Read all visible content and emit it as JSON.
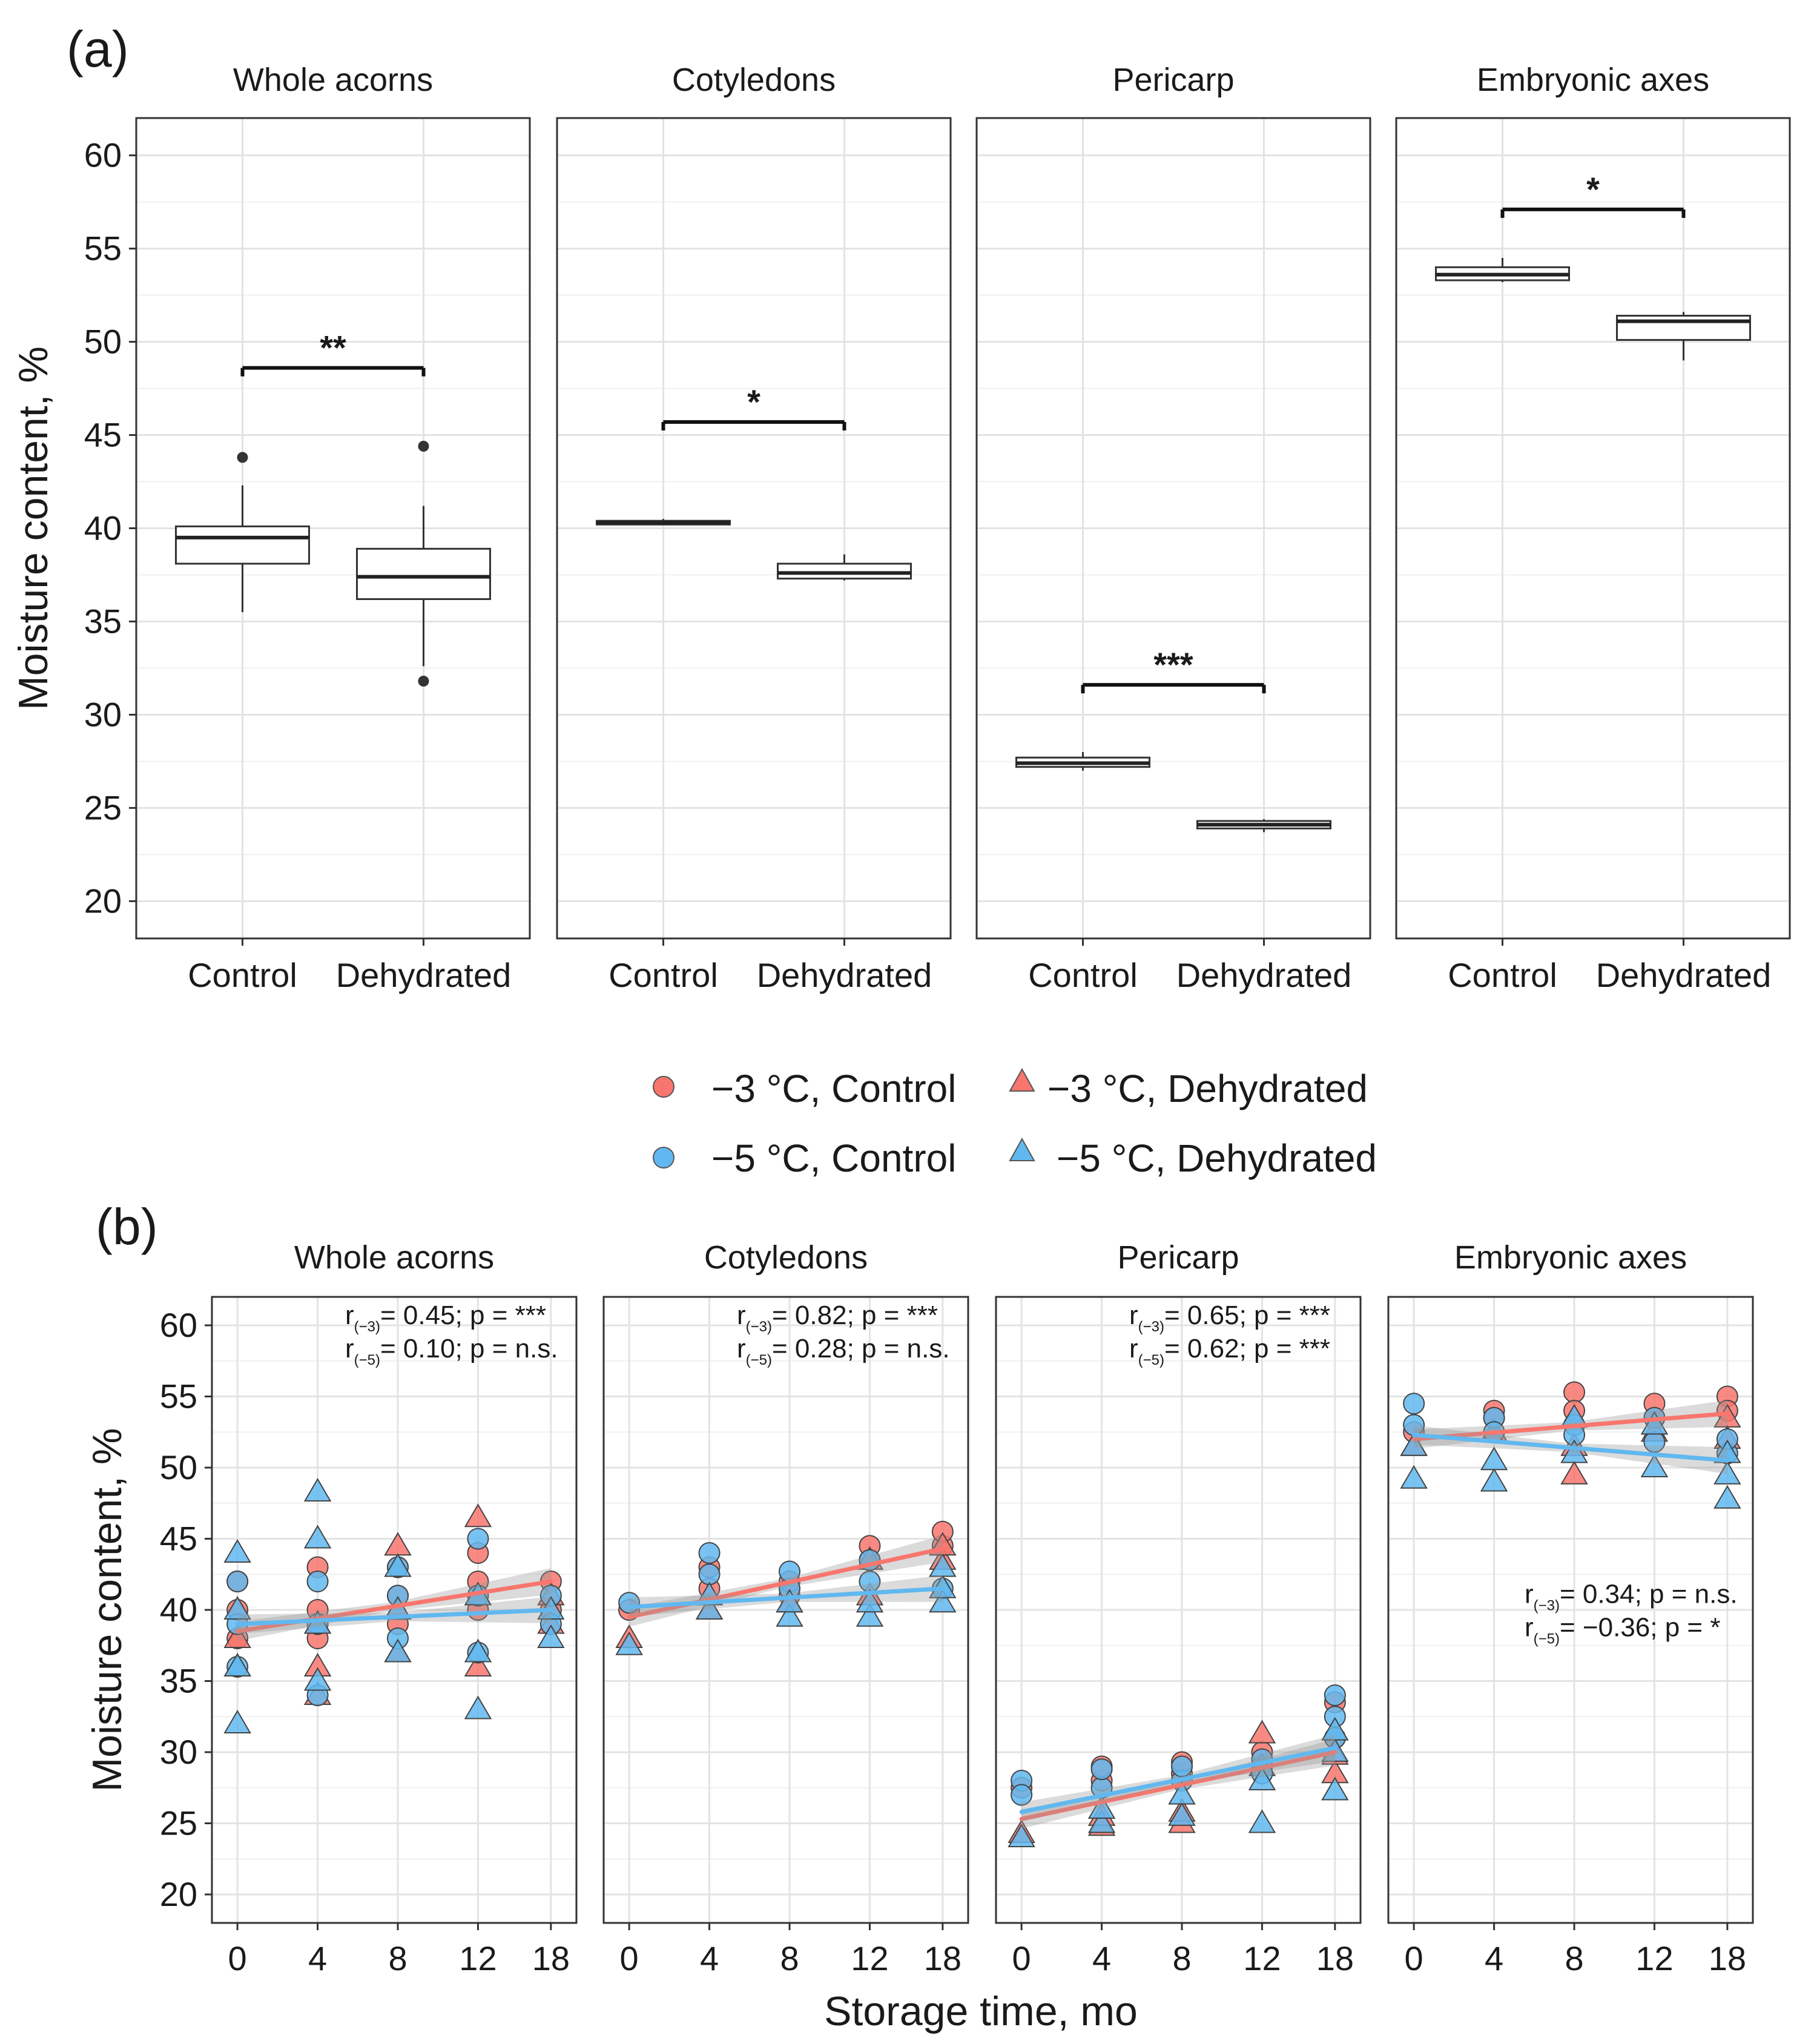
{
  "figure": {
    "panel_a_label": "(a)",
    "panel_b_label": "(b)",
    "ylabel": "Moisture content, %",
    "xlabel_b": "Storage time, mo",
    "facets": [
      "Whole acorns",
      "Cotyledons",
      "Pericarp",
      "Embryonic axes"
    ],
    "colors": {
      "minus3": "#f8766d",
      "minus5": "#61b8f0",
      "band": "#999999"
    }
  },
  "legend": {
    "items": [
      {
        "label": "−3 °C, Control",
        "shape": "circle",
        "color": "#f8766d"
      },
      {
        "label": "−3 °C, Dehydrated",
        "shape": "triangle",
        "color": "#f8766d"
      },
      {
        "label": "−5 °C, Control",
        "shape": "circle",
        "color": "#61b8f0"
      },
      {
        "label": "−5 °C, Dehydrated",
        "shape": "triangle",
        "color": "#61b8f0"
      }
    ]
  },
  "chart_data": [
    {
      "type": "box",
      "title": "(a)",
      "ylabel": "Moisture content, %",
      "ylim": [
        18,
        62
      ],
      "yticks": [
        20,
        25,
        30,
        35,
        40,
        45,
        50,
        55,
        60
      ],
      "categories": [
        "Control",
        "Dehydrated"
      ],
      "facets": [
        {
          "name": "Whole acorns",
          "significance": "**",
          "bracket_y": 48.6,
          "boxes": [
            {
              "q1": 38.1,
              "median": 39.5,
              "q3": 40.1,
              "whisker_low": 35.5,
              "whisker_high": 42.3,
              "outliers": [
                43.8
              ]
            },
            {
              "q1": 36.2,
              "median": 37.4,
              "q3": 38.9,
              "whisker_low": 32.6,
              "whisker_high": 41.2,
              "outliers": [
                44.4,
                31.8
              ]
            }
          ]
        },
        {
          "name": "Cotyledons",
          "significance": "*",
          "bracket_y": 45.7,
          "boxes": [
            {
              "q1": 40.2,
              "median": 40.3,
              "q3": 40.4,
              "whisker_low": 40.2,
              "whisker_high": 40.5,
              "outliers": []
            },
            {
              "q1": 37.3,
              "median": 37.6,
              "q3": 38.1,
              "whisker_low": 37.2,
              "whisker_high": 38.6,
              "outliers": []
            }
          ]
        },
        {
          "name": "Pericarp",
          "significance": "***",
          "bracket_y": 31.6,
          "boxes": [
            {
              "q1": 27.2,
              "median": 27.4,
              "q3": 27.7,
              "whisker_low": 27.0,
              "whisker_high": 28.0,
              "outliers": []
            },
            {
              "q1": 23.9,
              "median": 24.1,
              "q3": 24.3,
              "whisker_low": 23.7,
              "whisker_high": 24.4,
              "outliers": []
            }
          ]
        },
        {
          "name": "Embryonic axes",
          "significance": "*",
          "bracket_y": 57.1,
          "boxes": [
            {
              "q1": 53.3,
              "median": 53.6,
              "q3": 54.0,
              "whisker_low": 53.2,
              "whisker_high": 54.5,
              "outliers": []
            },
            {
              "q1": 50.1,
              "median": 51.1,
              "q3": 51.4,
              "whisker_low": 49.0,
              "whisker_high": 51.6,
              "outliers": []
            }
          ]
        }
      ]
    },
    {
      "type": "scatter",
      "title": "(b)",
      "xlabel": "Storage time, mo",
      "ylabel": "Moisture content, %",
      "ylim": [
        18,
        62
      ],
      "yticks": [
        20,
        25,
        30,
        35,
        40,
        45,
        50,
        55,
        60
      ],
      "x_categories": [
        "0",
        "4",
        "8",
        "12",
        "18"
      ],
      "facets": [
        {
          "name": "Whole acorns",
          "stats": [
            {
              "r_label": "r",
              "subscript": "(−3)",
              "text": "= 0.45; p = ***"
            },
            {
              "r_label": "r",
              "subscript": "(−5)",
              "text": "= 0.10; p = n.s."
            }
          ],
          "stats_position": "top-right",
          "trend": {
            "minus3": [
              38.5,
              42.0
            ],
            "minus5": [
              39.0,
              40.0
            ]
          },
          "points": {
            "minus3_control": [
              [
                0,
                38
              ],
              [
                0,
                40
              ],
              [
                0,
                42
              ],
              [
                4,
                38
              ],
              [
                4,
                40
              ],
              [
                4,
                43
              ],
              [
                8,
                39
              ],
              [
                8,
                41
              ],
              [
                8,
                43
              ],
              [
                12,
                40
              ],
              [
                12,
                42
              ],
              [
                12,
                44
              ],
              [
                18,
                40
              ],
              [
                18,
                42
              ]
            ],
            "minus3_dehydrated": [
              [
                0,
                36
              ],
              [
                0,
                38
              ],
              [
                4,
                34
              ],
              [
                4,
                36
              ],
              [
                4,
                39
              ],
              [
                8,
                37
              ],
              [
                8,
                40
              ],
              [
                8,
                44.5
              ],
              [
                12,
                36
              ],
              [
                12,
                41
              ],
              [
                12,
                46.5
              ],
              [
                18,
                39
              ],
              [
                18,
                41
              ]
            ],
            "minus5_control": [
              [
                0,
                36
              ],
              [
                0,
                39
              ],
              [
                0,
                42
              ],
              [
                4,
                34
              ],
              [
                4,
                39
              ],
              [
                4,
                42
              ],
              [
                8,
                38
              ],
              [
                8,
                41
              ],
              [
                8,
                43
              ],
              [
                12,
                37
              ],
              [
                12,
                41
              ],
              [
                12,
                45
              ],
              [
                18,
                39
              ],
              [
                18,
                41
              ]
            ],
            "minus5_dehydrated": [
              [
                0,
                32
              ],
              [
                0,
                36
              ],
              [
                0,
                40
              ],
              [
                0,
                44
              ],
              [
                4,
                35
              ],
              [
                4,
                39
              ],
              [
                4,
                45
              ],
              [
                4,
                48.3
              ],
              [
                8,
                37
              ],
              [
                8,
                40
              ],
              [
                8,
                43
              ],
              [
                12,
                33
              ],
              [
                12,
                37
              ],
              [
                12,
                41
              ],
              [
                18,
                38
              ],
              [
                18,
                40
              ]
            ]
          }
        },
        {
          "name": "Cotyledons",
          "stats": [
            {
              "r_label": "r",
              "subscript": "(−3)",
              "text": "= 0.82; p = ***"
            },
            {
              "r_label": "r",
              "subscript": "(−5)",
              "text": "= 0.28; p = n.s."
            }
          ],
          "stats_position": "top-right",
          "trend": {
            "minus3": [
              39.5,
              44.3
            ],
            "minus5": [
              40.2,
              41.5
            ]
          },
          "points": {
            "minus3_control": [
              [
                0,
                40
              ],
              [
                4,
                41.5
              ],
              [
                4,
                43
              ],
              [
                8,
                41
              ],
              [
                8,
                42
              ],
              [
                12,
                43.5
              ],
              [
                12,
                44.5
              ],
              [
                18,
                44.5
              ],
              [
                18,
                45.5
              ]
            ],
            "minus3_dehydrated": [
              [
                0,
                38
              ],
              [
                4,
                40
              ],
              [
                8,
                40.5
              ],
              [
                12,
                41
              ],
              [
                12,
                43.5
              ],
              [
                18,
                43.5
              ],
              [
                18,
                44.5
              ]
            ],
            "minus5_control": [
              [
                0,
                40.5
              ],
              [
                4,
                42.5
              ],
              [
                4,
                44
              ],
              [
                8,
                41.5
              ],
              [
                8,
                42.7
              ],
              [
                12,
                42
              ],
              [
                12,
                43.5
              ],
              [
                18,
                41.5
              ]
            ],
            "minus5_dehydrated": [
              [
                0,
                37.5
              ],
              [
                4,
                40
              ],
              [
                4,
                41
              ],
              [
                8,
                39.5
              ],
              [
                8,
                40.5
              ],
              [
                12,
                39.5
              ],
              [
                12,
                40.5
              ],
              [
                18,
                40.5
              ],
              [
                18,
                41.5
              ],
              [
                18,
                43
              ]
            ]
          }
        },
        {
          "name": "Pericarp",
          "stats": [
            {
              "r_label": "r",
              "subscript": "(−3)",
              "text": "= 0.65; p = ***"
            },
            {
              "r_label": "r",
              "subscript": "(−5)",
              "text": "= 0.62; p = ***"
            }
          ],
          "stats_position": "top-right",
          "trend": {
            "minus3": [
              25.3,
              30.0
            ],
            "minus5": [
              25.8,
              30.3
            ]
          },
          "points": {
            "minus3_control": [
              [
                0,
                27.5
              ],
              [
                4,
                28
              ],
              [
                4,
                29
              ],
              [
                8,
                28.5
              ],
              [
                8,
                29.3
              ],
              [
                12,
                29
              ],
              [
                12,
                30
              ],
              [
                18,
                31
              ],
              [
                18,
                33.5
              ]
            ],
            "minus3_dehydrated": [
              [
                0,
                24.3
              ],
              [
                4,
                24.8
              ],
              [
                4,
                25.5
              ],
              [
                8,
                25
              ],
              [
                8,
                25.8
              ],
              [
                12,
                29
              ],
              [
                12,
                31.3
              ],
              [
                18,
                28.5
              ],
              [
                18,
                29.8
              ]
            ],
            "minus5_control": [
              [
                0,
                28
              ],
              [
                0,
                27
              ],
              [
                4,
                27.5
              ],
              [
                4,
                28.8
              ],
              [
                8,
                28
              ],
              [
                8,
                29
              ],
              [
                12,
                29.5
              ],
              [
                12,
                28.5
              ],
              [
                18,
                31
              ],
              [
                18,
                32.5
              ],
              [
                18,
                34
              ]
            ],
            "minus5_dehydrated": [
              [
                0,
                24
              ],
              [
                4,
                25
              ],
              [
                4,
                26
              ],
              [
                8,
                25.5
              ],
              [
                8,
                27
              ],
              [
                12,
                25
              ],
              [
                12,
                28
              ],
              [
                18,
                27.3
              ],
              [
                18,
                30
              ],
              [
                18,
                31.5
              ]
            ]
          }
        },
        {
          "name": "Embryonic axes",
          "stats": [
            {
              "r_label": "r",
              "subscript": "(−3)",
              "text": "= 0.34; p = n.s."
            },
            {
              "r_label": "r",
              "subscript": "(−5)",
              "text": "= −0.36; p = *"
            }
          ],
          "stats_position": "middle-right",
          "trend": {
            "minus3": [
              52.0,
              53.8
            ],
            "minus5": [
              52.3,
              50.5
            ]
          },
          "points": {
            "minus3_control": [
              [
                0,
                52.5
              ],
              [
                4,
                54
              ],
              [
                4,
                53.5
              ],
              [
                8,
                55.3
              ],
              [
                8,
                54
              ],
              [
                12,
                54.5
              ],
              [
                12,
                53.5
              ],
              [
                18,
                55
              ],
              [
                18,
                54
              ]
            ],
            "minus3_dehydrated": [
              [
                0,
                51.5
              ],
              [
                4,
                52.5
              ],
              [
                8,
                49.5
              ],
              [
                8,
                51.5
              ],
              [
                12,
                52.5
              ],
              [
                18,
                53.5
              ],
              [
                18,
                52
              ]
            ],
            "minus5_control": [
              [
                0,
                54.5
              ],
              [
                0,
                53
              ],
              [
                4,
                53.5
              ],
              [
                4,
                52.5
              ],
              [
                8,
                53
              ],
              [
                8,
                52.3
              ],
              [
                12,
                53.5
              ],
              [
                12,
                51.8
              ],
              [
                18,
                51
              ],
              [
                18,
                52
              ]
            ],
            "minus5_dehydrated": [
              [
                0,
                49.2
              ],
              [
                0,
                51.5
              ],
              [
                4,
                49
              ],
              [
                4,
                50.5
              ],
              [
                8,
                51
              ],
              [
                8,
                53.5
              ],
              [
                12,
                50
              ],
              [
                12,
                53
              ],
              [
                18,
                47.8
              ],
              [
                18,
                49.5
              ],
              [
                18,
                51
              ]
            ]
          }
        }
      ]
    }
  ]
}
